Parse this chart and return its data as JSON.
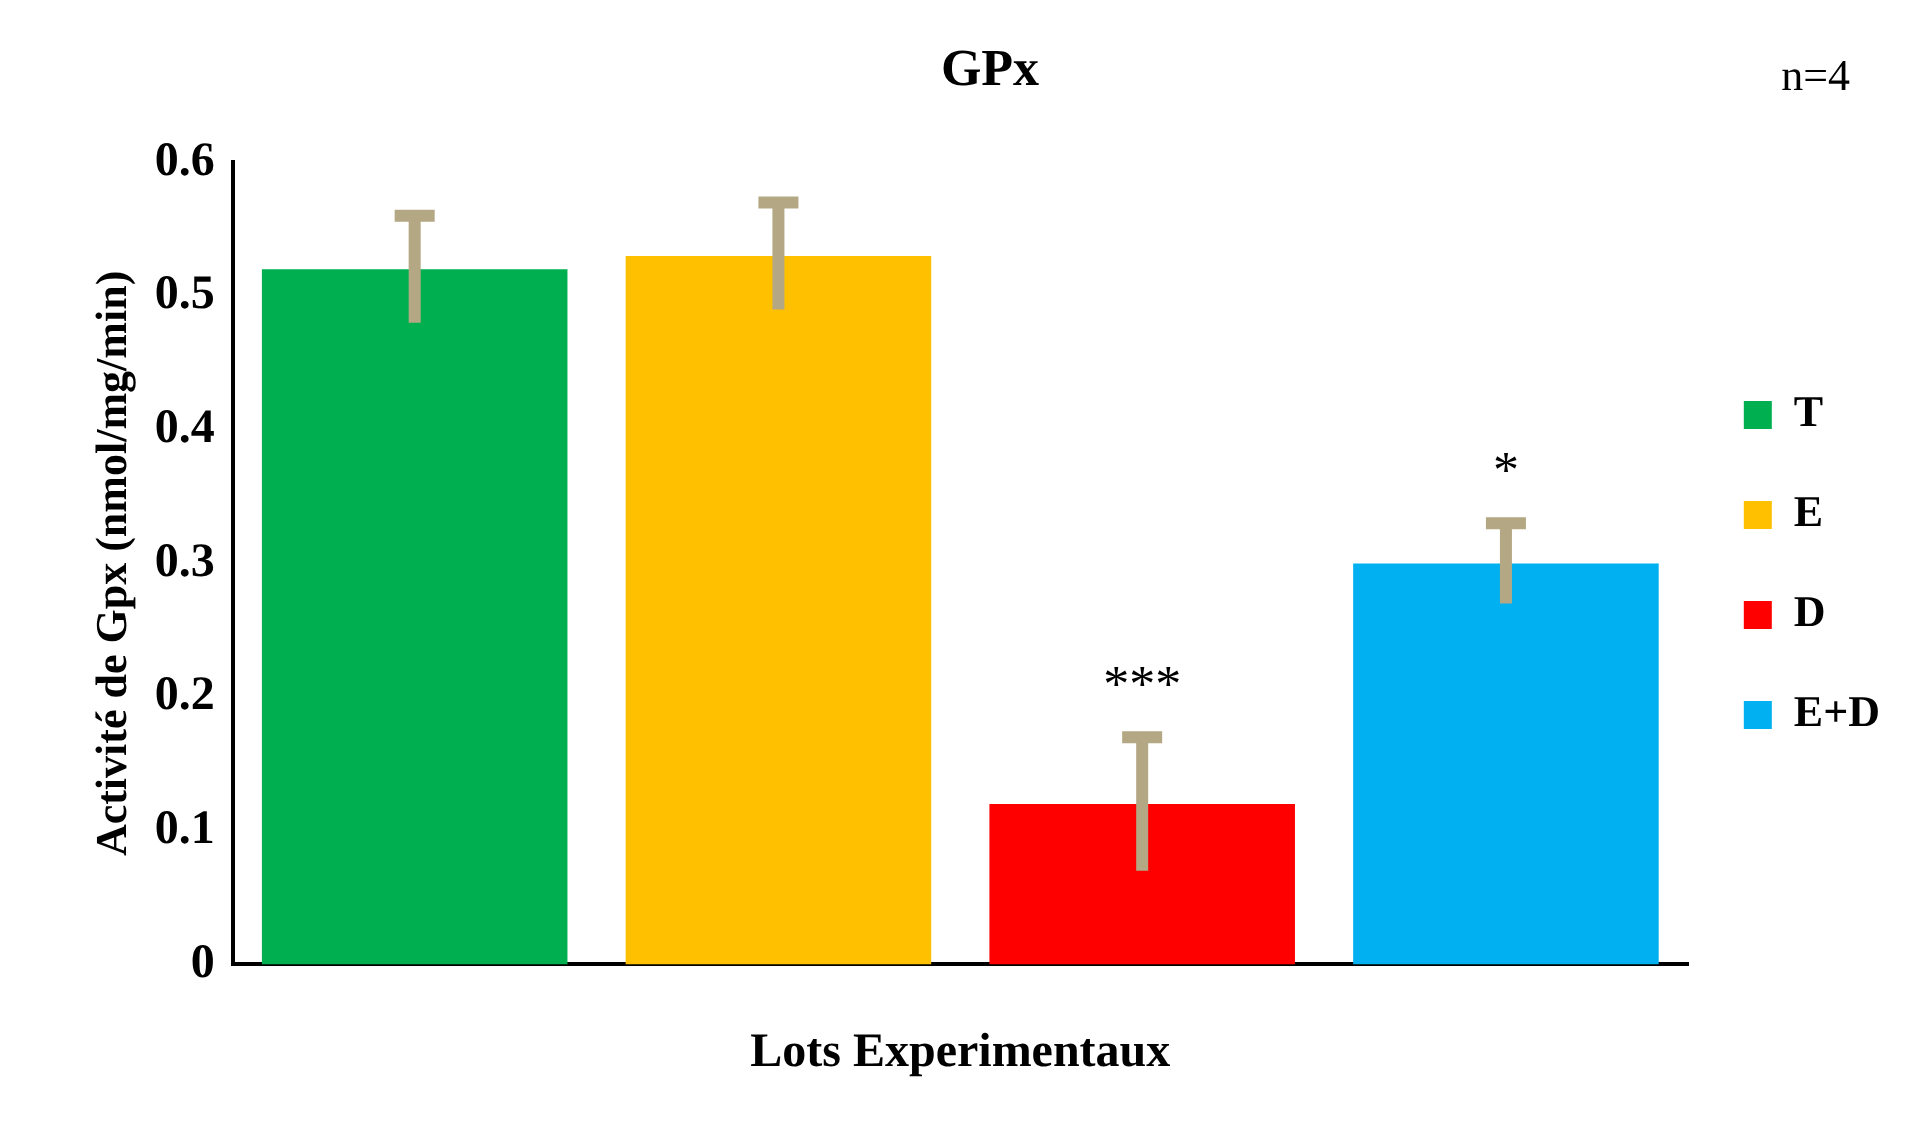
{
  "chart_data": {
    "type": "bar",
    "title": "GPx",
    "xlabel": "Lots Experimentaux",
    "ylabel": "Activité de Gpx (nmol/mg/min)",
    "categories": [
      null,
      null,
      null,
      null
    ],
    "series": [
      {
        "name": "T",
        "color": "#00b050",
        "values": [
          0.52,
          null,
          null,
          null
        ],
        "errors": [
          0.04,
          null,
          null,
          null
        ]
      },
      {
        "name": "E",
        "color": "#ffc000",
        "values": [
          null,
          0.53,
          null,
          null
        ],
        "errors": [
          null,
          0.04,
          null,
          null
        ]
      },
      {
        "name": "D",
        "color": "#ff0000",
        "values": [
          null,
          null,
          0.12,
          null
        ],
        "errors": [
          null,
          null,
          0.05,
          null
        ],
        "value_labels": [
          null,
          null,
          "***",
          null
        ]
      },
      {
        "name": "E+D",
        "color": "#00b0f0",
        "values": [
          null,
          null,
          null,
          0.3
        ],
        "errors": [
          null,
          null,
          null,
          0.03
        ],
        "value_labels": [
          null,
          null,
          null,
          "*"
        ]
      }
    ],
    "ylim": [
      0,
      0.6
    ],
    "yticks": [
      0,
      0.1,
      0.2,
      0.3,
      0.4,
      0.5,
      0.6
    ],
    "grid": false,
    "legend": "right",
    "annotations": [
      "n=4"
    ]
  }
}
